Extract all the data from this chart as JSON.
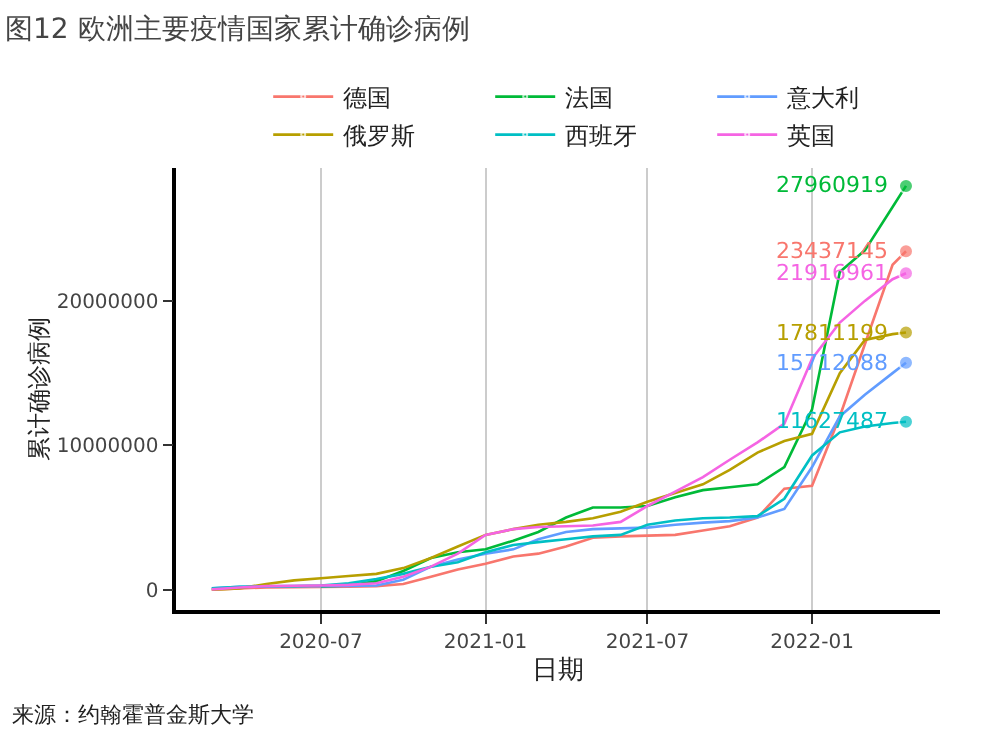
{
  "chart_data": {
    "type": "line",
    "title": "图12 欧洲主要疫情国家累计确诊病例",
    "xlabel": "日期",
    "ylabel": "累计确诊病例",
    "annotations": [
      "来源：约翰霍普金斯大学"
    ],
    "x": [
      "2020-03-01",
      "2020-04-01",
      "2020-05-01",
      "2020-06-01",
      "2020-07-01",
      "2020-08-01",
      "2020-09-01",
      "2020-10-01",
      "2020-11-01",
      "2020-12-01",
      "2021-01-01",
      "2021-02-01",
      "2021-03-01",
      "2021-04-01",
      "2021-05-01",
      "2021-06-01",
      "2021-07-01",
      "2021-08-01",
      "2021-09-01",
      "2021-10-01",
      "2021-11-01",
      "2021-12-01",
      "2022-01-01",
      "2022-02-01",
      "2022-03-01",
      "2022-04-01",
      "2022-04-16"
    ],
    "xlim": [
      "2020-01-21",
      "2022-05-24"
    ],
    "xticks": [
      {
        "value": "2020-07-01",
        "label": "2020-07"
      },
      {
        "value": "2021-01-01",
        "label": "2021-01"
      },
      {
        "value": "2021-07-01",
        "label": "2021-07"
      },
      {
        "value": "2022-01-01",
        "label": "2022-01"
      }
    ],
    "ylim": [
      -1400000,
      29200000
    ],
    "yticks": [
      0,
      10000000,
      20000000
    ],
    "grid": "x",
    "legend": "top",
    "line_style": "solid",
    "series": [
      {
        "name": "德国",
        "color": "#f8766d",
        "values": [
          0,
          100000,
          160000,
          180000,
          200000,
          220000,
          250000,
          400000,
          900000,
          1400000,
          1800000,
          2300000,
          2500000,
          3000000,
          3600000,
          3700000,
          3750000,
          3800000,
          4100000,
          4400000,
          5000000,
          7000000,
          7200000,
          12000000,
          17000000,
          22500000,
          23437145
        ],
        "value_labels": [
          null,
          null,
          null,
          null,
          null,
          null,
          null,
          null,
          null,
          null,
          null,
          null,
          null,
          null,
          null,
          null,
          null,
          null,
          null,
          null,
          null,
          null,
          null,
          null,
          null,
          null,
          "23437145"
        ]
      },
      {
        "name": "法国",
        "color": "#00ba38",
        "values": [
          null,
          null,
          null,
          null,
          220000,
          300000,
          600000,
          1300000,
          2200000,
          2600000,
          2800000,
          3400000,
          4000000,
          5000000,
          5700000,
          5700000,
          5800000,
          6400000,
          6900000,
          7100000,
          7300000,
          8500000,
          12500000,
          22000000,
          23500000,
          26500000,
          27960919
        ],
        "value_labels": [
          null,
          null,
          null,
          null,
          null,
          null,
          null,
          null,
          null,
          null,
          null,
          null,
          null,
          null,
          null,
          null,
          null,
          null,
          null,
          null,
          null,
          null,
          null,
          null,
          null,
          null,
          "27960919"
        ]
      },
      {
        "name": "意大利",
        "color": "#619cff",
        "values": [
          100000,
          200000,
          230000,
          240000,
          250000,
          270000,
          300000,
          700000,
          1600000,
          2100000,
          2500000,
          2800000,
          3500000,
          4000000,
          4200000,
          4250000,
          4300000,
          4500000,
          4650000,
          4750000,
          5000000,
          5600000,
          8500000,
          12000000,
          13500000,
          15000000,
          15712088
        ],
        "value_labels": [
          null,
          null,
          null,
          null,
          null,
          null,
          null,
          null,
          null,
          null,
          null,
          null,
          null,
          null,
          null,
          null,
          null,
          null,
          null,
          null,
          null,
          null,
          null,
          null,
          null,
          null,
          "15712088"
        ]
      },
      {
        "name": "俄罗斯",
        "color": "#b79f00",
        "values": [
          0,
          100000,
          400000,
          650000,
          800000,
          950000,
          1100000,
          1500000,
          2200000,
          3000000,
          3800000,
          4200000,
          4500000,
          4700000,
          4950000,
          5400000,
          6100000,
          6700000,
          7300000,
          8300000,
          9500000,
          10300000,
          10800000,
          15000000,
          17300000,
          17700000,
          17811199
        ],
        "value_labels": [
          null,
          null,
          null,
          null,
          null,
          null,
          null,
          null,
          null,
          null,
          null,
          null,
          null,
          null,
          null,
          null,
          null,
          null,
          null,
          null,
          null,
          null,
          null,
          null,
          null,
          null,
          "17811199"
        ]
      },
      {
        "name": "西班牙",
        "color": "#00bfc4",
        "values": [
          100000,
          200000,
          240000,
          250000,
          300000,
          450000,
          750000,
          1100000,
          1600000,
          1900000,
          2600000,
          3100000,
          3300000,
          3500000,
          3700000,
          3800000,
          4500000,
          4800000,
          4950000,
          5000000,
          5100000,
          6300000,
          9300000,
          10900000,
          11300000,
          11550000,
          11627487
        ],
        "value_labels": [
          null,
          null,
          null,
          null,
          null,
          null,
          null,
          null,
          null,
          null,
          null,
          null,
          null,
          null,
          null,
          null,
          null,
          null,
          null,
          null,
          null,
          null,
          null,
          null,
          null,
          null,
          "11627487"
        ]
      },
      {
        "name": "英国",
        "color": "#f564e3",
        "values": [
          30000,
          160000,
          250000,
          280000,
          300000,
          340000,
          450000,
          900000,
          1600000,
          2500000,
          3800000,
          4200000,
          4350000,
          4400000,
          4450000,
          4700000,
          5800000,
          6800000,
          7800000,
          9000000,
          10200000,
          11500000,
          16000000,
          18500000,
          20000000,
          21500000,
          21916961
        ],
        "value_labels": [
          null,
          null,
          null,
          null,
          null,
          null,
          null,
          null,
          null,
          null,
          null,
          null,
          null,
          null,
          null,
          null,
          null,
          null,
          null,
          null,
          null,
          null,
          null,
          null,
          null,
          null,
          "21916961"
        ]
      }
    ]
  }
}
